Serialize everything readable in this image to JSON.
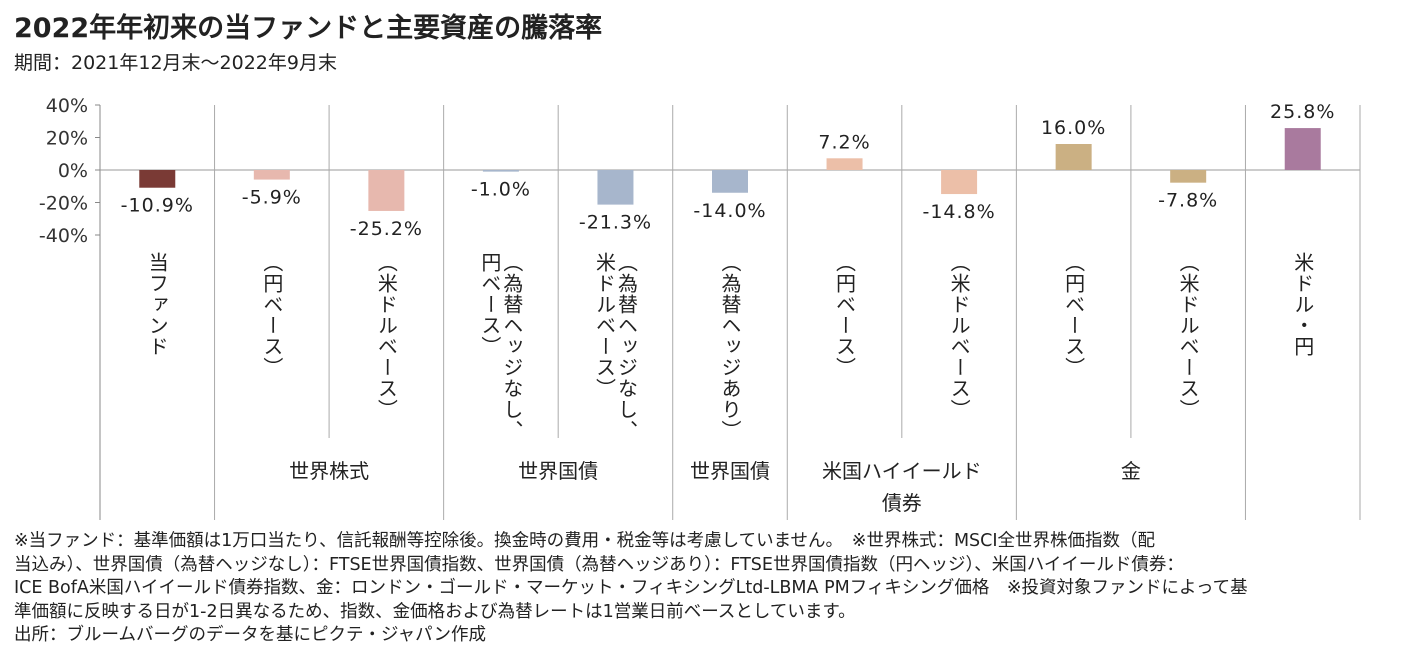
{
  "title": "2022年年初来の当ファンドと主要資産の騰落率",
  "subtitle": "期間：2021年12月末～2022年9月末",
  "chart_data": {
    "type": "bar",
    "ylim": [
      -40,
      40
    ],
    "y_ticks": [
      "40%",
      "20%",
      "0%",
      "-20%",
      "-40%"
    ],
    "y_tick_values": [
      40,
      20,
      0,
      -20,
      -40
    ],
    "categories": [
      [
        "当ファンド"
      ],
      [
        "（円ベース）"
      ],
      [
        "（米ドルベース）"
      ],
      [
        "（為替ヘッジなし、",
        "円ベース）"
      ],
      [
        "（為替ヘッジなし、",
        "米ドルベース）"
      ],
      [
        "（為替ヘッジあり）"
      ],
      [
        "（円ベース）"
      ],
      [
        "（米ドルベース）"
      ],
      [
        "（円ベース）"
      ],
      [
        "（米ドルベース）"
      ],
      [
        "米ドル・円"
      ]
    ],
    "values": [
      -10.9,
      -5.9,
      -25.2,
      -1.0,
      -21.3,
      -14.0,
      7.2,
      -14.8,
      16.0,
      -7.8,
      25.8
    ],
    "value_labels": [
      "-10.9%",
      "-5.9%",
      "-25.2%",
      "-1.0%",
      "-21.3%",
      "-14.0%",
      "7.2%",
      "-14.8%",
      "16.0%",
      "-7.8%",
      "25.8%"
    ],
    "colors": [
      "#7a3a35",
      "#e7b8ae",
      "#e7b8ae",
      "#a7b6cc",
      "#a7b6cc",
      "#a7b6cc",
      "#ecbfa8",
      "#ecbfa8",
      "#cbb083",
      "#cbb083",
      "#a97a9e"
    ],
    "groups": [
      {
        "label": [
          "世界株式"
        ],
        "span": [
          1,
          2
        ]
      },
      {
        "label": [
          "世界国債"
        ],
        "span": [
          3,
          4
        ]
      },
      {
        "label": [
          "世界国債"
        ],
        "span": [
          5,
          5
        ]
      },
      {
        "label": [
          "米国ハイイールド",
          "債券"
        ],
        "span": [
          6,
          7
        ]
      },
      {
        "label": [
          "金"
        ],
        "span": [
          8,
          9
        ]
      }
    ]
  },
  "notes": [
    "※当ファンド：基準価額は1万口当たり、信託報酬等控除後。換金時の費用・税金等は考慮していません。　※世界株式：MSCI全世界株価指数（配",
    "当込み）、世界国債（為替ヘッジなし）：FTSE世界国債指数、世界国債（為替ヘッジあり）：FTSE世界国債指数（円ヘッジ）、米国ハイイールド債券：",
    "ICE BofA米国ハイイールド債券指数、金：ロンドン・ゴールド・マーケット・フィキシングLtd-LBMA PMフィキシング価格　※投資対象ファンドによって基",
    "準価額に反映する日が1-2日異なるため、指数、金価格および為替レートは1営業日前ベースとしています。",
    "出所：ブルームバーグのデータを基にピクテ・ジャパン作成"
  ]
}
